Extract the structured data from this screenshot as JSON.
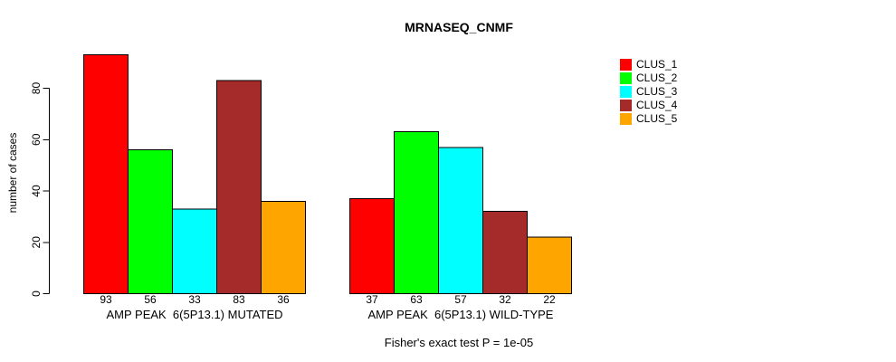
{
  "chart_data": {
    "type": "bar",
    "title": "MRNASEQ_CNMF",
    "ylabel": "number of cases",
    "xlabel": "",
    "ylim": [
      0,
      95
    ],
    "yticks": [
      0,
      20,
      40,
      60,
      80
    ],
    "grid": false,
    "legend_position": "right",
    "bar_value_labels": true,
    "series": [
      {
        "name": "CLUS_1",
        "color": "#FF0000"
      },
      {
        "name": "CLUS_2",
        "color": "#00FF00"
      },
      {
        "name": "CLUS_3",
        "color": "#00FFFF"
      },
      {
        "name": "CLUS_4",
        "color": "#A52A2A"
      },
      {
        "name": "CLUS_5",
        "color": "#FFA500"
      }
    ],
    "groups": [
      {
        "label": "AMP PEAK  6(5P13.1) MUTATED",
        "values": [
          93,
          56,
          33,
          83,
          36
        ]
      },
      {
        "label": "AMP PEAK  6(5P13.1) WILD-TYPE",
        "values": [
          37,
          63,
          57,
          32,
          22
        ]
      }
    ],
    "annotation": "Fisher's exact test P = 1e-05"
  }
}
